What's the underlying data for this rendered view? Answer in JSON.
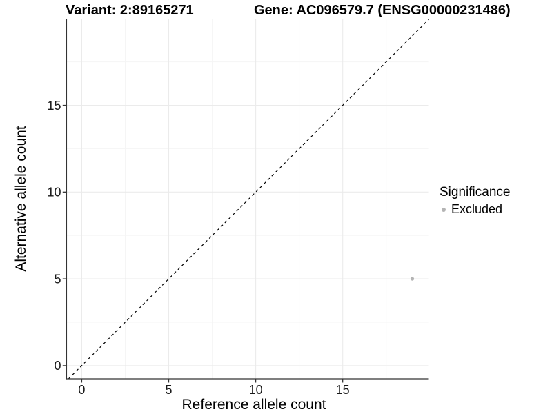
{
  "header": {
    "variant_title": "Variant: 2:89165271",
    "gene_title": "Gene: AC096579.7 (ENSG00000231486)"
  },
  "legend": {
    "title": "Significance",
    "items": [
      {
        "label": "Excluded",
        "color": "#b4b4b4"
      }
    ]
  },
  "chart_data": {
    "type": "scatter",
    "title": "Variant: 2:89165271   Gene: AC096579.7 (ENSG00000231486)",
    "xlabel": "Reference allele count",
    "ylabel": "Alternative allele count",
    "xlim": [
      -0.85,
      19.95
    ],
    "ylim": [
      -0.76,
      19.99
    ],
    "x_ticks": [
      0,
      5,
      10,
      15
    ],
    "y_ticks": [
      0,
      5,
      10,
      15
    ],
    "x_minor_ticks": [
      2.5,
      7.5,
      12.5,
      17.5
    ],
    "y_minor_ticks": [
      2.5,
      7.5,
      12.5,
      17.5
    ],
    "grid": true,
    "legend_position": "right",
    "series": [
      {
        "name": "Excluded",
        "color": "#b4b4b4",
        "points": [
          {
            "x": 19,
            "y": 5
          }
        ]
      }
    ],
    "reference_line": {
      "type": "identity y=x",
      "style": "dashed",
      "color": "#000000"
    },
    "colors": {
      "axis_line": "#333333",
      "grid_major": "#ebebeb",
      "grid_minor": "#f5f5f5",
      "tick_label": "#1a1a1a",
      "point": "#b4b4b4",
      "dashed_line": "#000000"
    }
  }
}
